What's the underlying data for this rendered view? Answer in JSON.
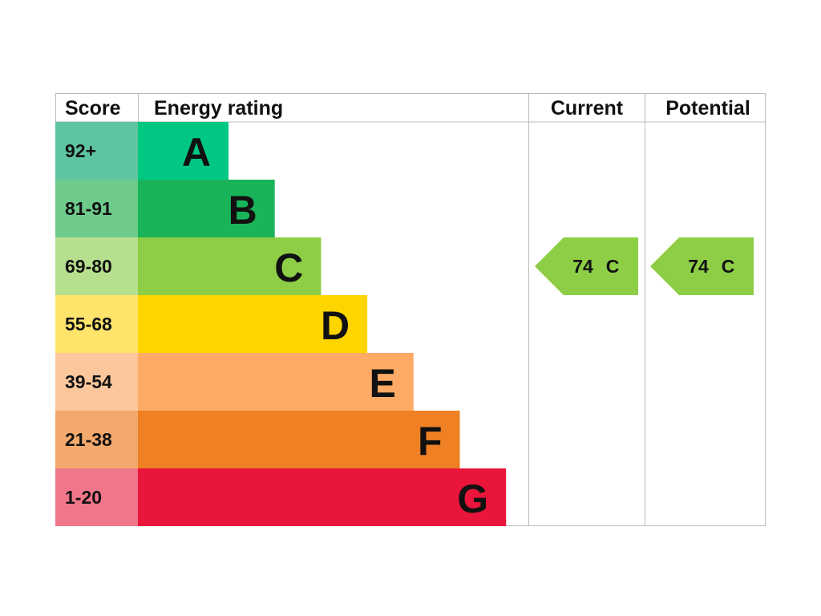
{
  "header": {
    "score": "Score",
    "rating": "Energy rating",
    "current": "Current",
    "potential": "Potential"
  },
  "bands": [
    {
      "score": "92+",
      "letter": "A",
      "color": "#00c781",
      "score_color": "#5ec5a0"
    },
    {
      "score": "81-91",
      "letter": "B",
      "color": "#19b459",
      "score_color": "#6ecb8c"
    },
    {
      "score": "69-80",
      "letter": "C",
      "color": "#8dce46",
      "score_color": "#b7e08e"
    },
    {
      "score": "55-68",
      "letter": "D",
      "color": "#ffd500",
      "score_color": "#ffe36b"
    },
    {
      "score": "39-54",
      "letter": "E",
      "color": "#fcaa65",
      "score_color": "#fdc79e"
    },
    {
      "score": "21-38",
      "letter": "F",
      "color": "#ef8023",
      "score_color": "#f4a96c"
    },
    {
      "score": "1-20",
      "letter": "G",
      "color": "#e9153b",
      "score_color": "#f0768b"
    }
  ],
  "current": {
    "value": "74",
    "letter": "C"
  },
  "potential": {
    "value": "74",
    "letter": "C"
  }
}
